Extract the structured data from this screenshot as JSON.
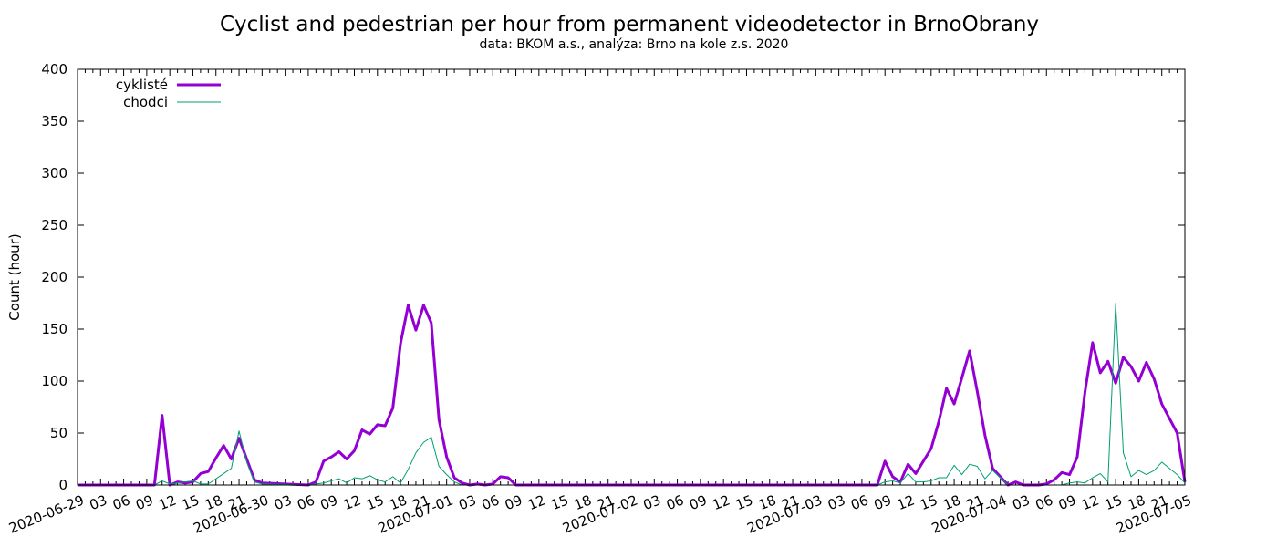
{
  "chart_data": {
    "type": "line",
    "title": "Cyclist and pedestrian per hour from permanent videodetector in BrnoObrany",
    "subtitle": "data: BKOM a.s., analýza: Brno na kole z.s. 2020",
    "ylabel": "Count (hour)",
    "ylim": [
      0,
      400
    ],
    "yticks": [
      0,
      50,
      100,
      150,
      200,
      250,
      300,
      350,
      400
    ],
    "xlim": [
      0,
      144
    ],
    "xtick_labels": [
      "2020-06-29",
      "03",
      "06",
      "09",
      "12",
      "15",
      "18",
      "21",
      "2020-06-30",
      "03",
      "06",
      "09",
      "12",
      "15",
      "18",
      "21",
      "2020-07-01",
      "03",
      "06",
      "09",
      "12",
      "15",
      "18",
      "21",
      "2020-07-02",
      "03",
      "06",
      "09",
      "12",
      "15",
      "18",
      "21",
      "2020-07-03",
      "03",
      "06",
      "09",
      "12",
      "15",
      "18",
      "21",
      "2020-07-04",
      "03",
      "06",
      "09",
      "12",
      "15",
      "18",
      "21",
      "2020-07-05"
    ],
    "legend_position": "top-left",
    "series": [
      {
        "name": "cyklisté",
        "color": "#9400d3",
        "points": [
          [
            0,
            0
          ],
          [
            10,
            0
          ],
          [
            11,
            67
          ],
          [
            12,
            0
          ],
          [
            13,
            3
          ],
          [
            14,
            2
          ],
          [
            15,
            3
          ],
          [
            16,
            11
          ],
          [
            17,
            13
          ],
          [
            18,
            26
          ],
          [
            19,
            38
          ],
          [
            20,
            25
          ],
          [
            21,
            45
          ],
          [
            22,
            25
          ],
          [
            23,
            5
          ],
          [
            24,
            2
          ],
          [
            30,
            0
          ],
          [
            31,
            3
          ],
          [
            32,
            23
          ],
          [
            33,
            27
          ],
          [
            34,
            32
          ],
          [
            35,
            25
          ],
          [
            36,
            33
          ],
          [
            37,
            53
          ],
          [
            38,
            49
          ],
          [
            39,
            58
          ],
          [
            40,
            57
          ],
          [
            41,
            74
          ],
          [
            42,
            136
          ],
          [
            43,
            173
          ],
          [
            44,
            149
          ],
          [
            45,
            173
          ],
          [
            46,
            156
          ],
          [
            47,
            63
          ],
          [
            48,
            27
          ],
          [
            49,
            7
          ],
          [
            50,
            2
          ],
          [
            51,
            0
          ],
          [
            52,
            1
          ],
          [
            53,
            0
          ],
          [
            54,
            1
          ],
          [
            55,
            8
          ],
          [
            56,
            7
          ],
          [
            57,
            0
          ],
          [
            104,
            0
          ],
          [
            105,
            23
          ],
          [
            106,
            8
          ],
          [
            107,
            3
          ],
          [
            108,
            20
          ],
          [
            109,
            11
          ],
          [
            110,
            23
          ],
          [
            111,
            35
          ],
          [
            112,
            61
          ],
          [
            113,
            93
          ],
          [
            114,
            78
          ],
          [
            115,
            103
          ],
          [
            116,
            129
          ],
          [
            117,
            90
          ],
          [
            118,
            48
          ],
          [
            119,
            16
          ],
          [
            120,
            8
          ],
          [
            121,
            0
          ],
          [
            122,
            3
          ],
          [
            123,
            0
          ],
          [
            124,
            0
          ],
          [
            125,
            0
          ],
          [
            126,
            1
          ],
          [
            127,
            5
          ],
          [
            128,
            12
          ],
          [
            129,
            10
          ],
          [
            130,
            27
          ],
          [
            131,
            89
          ],
          [
            132,
            137
          ],
          [
            133,
            108
          ],
          [
            134,
            119
          ],
          [
            135,
            98
          ],
          [
            136,
            123
          ],
          [
            137,
            114
          ],
          [
            138,
            100
          ],
          [
            139,
            118
          ],
          [
            140,
            102
          ],
          [
            141,
            78
          ],
          [
            142,
            64
          ],
          [
            143,
            50
          ],
          [
            144,
            3
          ]
        ]
      },
      {
        "name": "chodci",
        "color": "#009e73",
        "points": [
          [
            0,
            0
          ],
          [
            10,
            0
          ],
          [
            11,
            4
          ],
          [
            12,
            1
          ],
          [
            13,
            2
          ],
          [
            14,
            3
          ],
          [
            15,
            4
          ],
          [
            16,
            1
          ],
          [
            17,
            1
          ],
          [
            18,
            6
          ],
          [
            19,
            11
          ],
          [
            20,
            16
          ],
          [
            21,
            52
          ],
          [
            22,
            22
          ],
          [
            23,
            3
          ],
          [
            24,
            1
          ],
          [
            30,
            0
          ],
          [
            31,
            1
          ],
          [
            32,
            2
          ],
          [
            33,
            4
          ],
          [
            34,
            6
          ],
          [
            35,
            2
          ],
          [
            36,
            7
          ],
          [
            37,
            6
          ],
          [
            38,
            9
          ],
          [
            39,
            5
          ],
          [
            40,
            3
          ],
          [
            41,
            8
          ],
          [
            42,
            2
          ],
          [
            43,
            15
          ],
          [
            44,
            31
          ],
          [
            45,
            41
          ],
          [
            46,
            46
          ],
          [
            47,
            18
          ],
          [
            48,
            10
          ],
          [
            49,
            3
          ],
          [
            50,
            0
          ],
          [
            104,
            0
          ],
          [
            105,
            3
          ],
          [
            106,
            4
          ],
          [
            107,
            2
          ],
          [
            108,
            11
          ],
          [
            109,
            3
          ],
          [
            110,
            3
          ],
          [
            111,
            4
          ],
          [
            112,
            7
          ],
          [
            113,
            7
          ],
          [
            114,
            19
          ],
          [
            115,
            10
          ],
          [
            116,
            20
          ],
          [
            117,
            18
          ],
          [
            118,
            6
          ],
          [
            119,
            14
          ],
          [
            120,
            7
          ],
          [
            121,
            0
          ],
          [
            122,
            0
          ],
          [
            128,
            0
          ],
          [
            129,
            2
          ],
          [
            130,
            3
          ],
          [
            131,
            2
          ],
          [
            132,
            7
          ],
          [
            133,
            11
          ],
          [
            134,
            3
          ],
          [
            135,
            175
          ],
          [
            136,
            31
          ],
          [
            137,
            8
          ],
          [
            138,
            14
          ],
          [
            139,
            10
          ],
          [
            140,
            14
          ],
          [
            141,
            22
          ],
          [
            142,
            16
          ],
          [
            143,
            10
          ],
          [
            144,
            2
          ]
        ]
      }
    ]
  }
}
